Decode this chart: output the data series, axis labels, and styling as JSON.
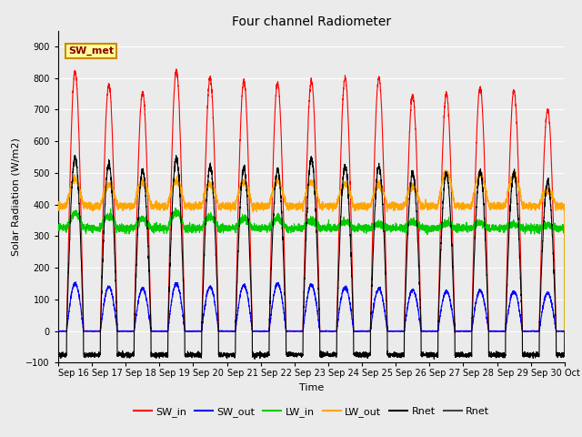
{
  "title": "Four channel Radiometer",
  "xlabel": "Time",
  "ylabel": "Solar Radiation (W/m2)",
  "ylim": [
    -100,
    950
  ],
  "yticks": [
    -100,
    0,
    100,
    200,
    300,
    400,
    500,
    600,
    700,
    800,
    900
  ],
  "annotation_text": "SW_met",
  "background_color": "#ebebeb",
  "plot_bg_color": "#ebebeb",
  "n_days": 15,
  "x_tick_labels": [
    "Sep 16",
    "Sep 17",
    "Sep 18",
    "Sep 19",
    "Sep 20",
    "Sep 21",
    "Sep 22",
    "Sep 23",
    "Sep 24",
    "Sep 25",
    "Sep 26",
    "Sep 27",
    "Sep 28",
    "Sep 29",
    "Sep 30",
    "Oct 1"
  ],
  "legend_entries": [
    {
      "label": "SW_in",
      "color": "#ff0000",
      "ls": "-"
    },
    {
      "label": "SW_out",
      "color": "#0000ff",
      "ls": "-"
    },
    {
      "label": "LW_in",
      "color": "#00cc00",
      "ls": "-"
    },
    {
      "label": "LW_out",
      "color": "#ffa500",
      "ls": "-"
    },
    {
      "label": "Rnet",
      "color": "#000000",
      "ls": "-"
    },
    {
      "label": "Rnet",
      "color": "#444444",
      "ls": "-"
    }
  ],
  "SW_in_peaks": [
    820,
    780,
    755,
    825,
    800,
    790,
    785,
    790,
    800,
    800,
    745,
    750,
    770,
    760,
    700
  ],
  "SW_out_peaks": [
    150,
    140,
    135,
    150,
    140,
    145,
    150,
    145,
    140,
    135,
    130,
    125,
    128,
    125,
    120
  ],
  "LW_in_base": 325,
  "LW_in_peaks": [
    370,
    365,
    355,
    375,
    360,
    355,
    355,
    350,
    345,
    340,
    345,
    340,
    340,
    338,
    335
  ],
  "LW_out_base": 395,
  "LW_out_peaks": [
    480,
    465,
    470,
    475,
    465,
    470,
    475,
    470,
    465,
    460,
    455,
    500,
    495,
    490,
    445
  ],
  "Rnet_peaks": [
    550,
    530,
    510,
    545,
    520,
    515,
    510,
    545,
    520,
    520,
    500,
    500,
    505,
    500,
    470
  ],
  "Rnet_night": -75
}
